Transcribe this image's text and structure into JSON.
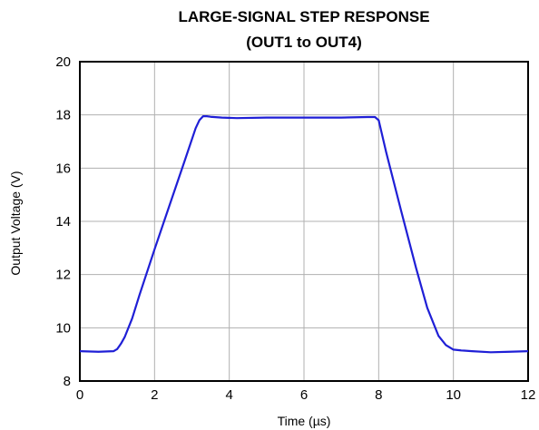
{
  "chart_data": {
    "type": "line",
    "title": "LARGE-SIGNAL STEP RESPONSE",
    "subtitle": "(OUT1 to OUT4)",
    "xlabel": "Time (µs)",
    "ylabel": "Output Voltage (V)",
    "xlim": [
      0,
      12
    ],
    "ylim": [
      8,
      20
    ],
    "xticks": [
      "0",
      "2",
      "4",
      "6",
      "8",
      "10",
      "12"
    ],
    "yticks": [
      "8",
      "10",
      "12",
      "14",
      "16",
      "18",
      "20"
    ],
    "grid": true,
    "line_color": "#1f1fd6",
    "series": [
      {
        "x": [
          0,
          0.5,
          0.9,
          1.0,
          1.1,
          1.2,
          1.4,
          1.6,
          2.0,
          2.4,
          2.8,
          3.1,
          3.2,
          3.3,
          3.4,
          3.5,
          3.8,
          4.2,
          5.0,
          6.0,
          7.0,
          7.7,
          7.9,
          8.0,
          8.2,
          8.6,
          9.0,
          9.3,
          9.6,
          9.8,
          10.0,
          10.2,
          10.5,
          11.0,
          11.5,
          12.0
        ],
        "y": [
          9.12,
          9.1,
          9.12,
          9.2,
          9.4,
          9.65,
          10.35,
          11.25,
          12.95,
          14.6,
          16.25,
          17.5,
          17.8,
          17.95,
          17.95,
          17.93,
          17.9,
          17.88,
          17.9,
          17.9,
          17.9,
          17.92,
          17.92,
          17.8,
          16.6,
          14.4,
          12.25,
          10.75,
          9.7,
          9.35,
          9.18,
          9.15,
          9.12,
          9.08,
          9.1,
          9.12
        ]
      }
    ]
  }
}
